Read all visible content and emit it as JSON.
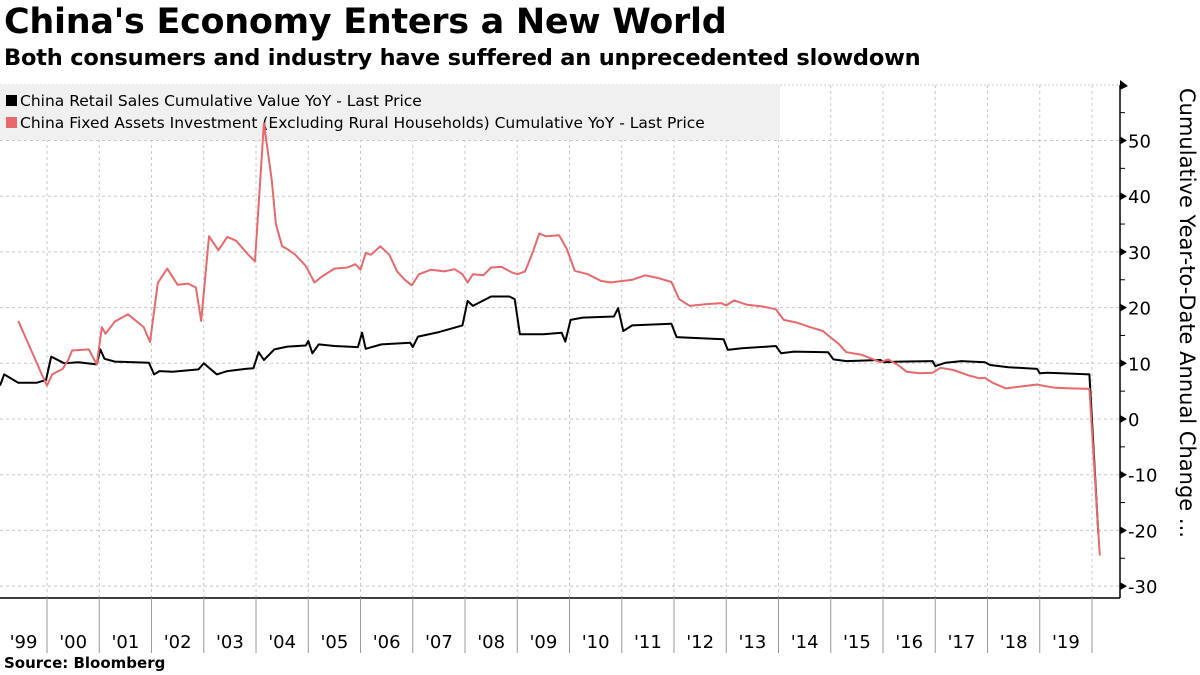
{
  "header": {
    "title": "China's Economy Enters a New World",
    "subtitle": "Both consumers and industry have suffered an unprecedented slowdown"
  },
  "footer": {
    "source": "Source: Bloomberg"
  },
  "chart_data": {
    "type": "line",
    "title": "China's Economy Enters a New World",
    "subtitle": "Both consumers and industry have suffered an unprecedented slowdown",
    "xlabel": "",
    "ylabel": "Cumulative Year-to-Date Annual Change ...",
    "xlim": [
      1999.1,
      2020.35
    ],
    "ylim": [
      -32,
      60
    ],
    "y_ticks": [
      50,
      40,
      30,
      20,
      10,
      0,
      -10,
      -20,
      -30
    ],
    "y_tick_labels": [
      "50",
      "40",
      "30",
      "20",
      "10",
      "0",
      "-10",
      "-20",
      "-30"
    ],
    "x_ticks": [
      1999,
      2000,
      2001,
      2002,
      2003,
      2004,
      2005,
      2006,
      2007,
      2008,
      2009,
      2010,
      2011,
      2012,
      2013,
      2014,
      2015,
      2016,
      2017,
      2018,
      2019
    ],
    "x_tick_labels": [
      "'99",
      "'00",
      "'01",
      "'02",
      "'03",
      "'04",
      "'05",
      "'06",
      "'07",
      "'08",
      "'09",
      "'10",
      "'11",
      "'12",
      "'13",
      "'14",
      "'15",
      "'16",
      "'17",
      "'18",
      "'19"
    ],
    "y_axis_side": "right",
    "grid": true,
    "legend_position": "top-left",
    "colors": {
      "retail": "#000000",
      "fai": "#e8696b",
      "legend_bg": "#f0f0f0",
      "grid": "#c8c8c8"
    },
    "series": [
      {
        "name": "China Retail Sales Cumulative Value YoY - Last Price",
        "color": "#000000",
        "points": [
          [
            1999.1,
            6.0
          ],
          [
            1999.18,
            8.0
          ],
          [
            1999.45,
            6.5
          ],
          [
            1999.8,
            6.5
          ],
          [
            1999.98,
            7.0
          ],
          [
            2000.08,
            11.2
          ],
          [
            2000.33,
            10.0
          ],
          [
            2000.6,
            10.2
          ],
          [
            2000.95,
            9.8
          ],
          [
            2001.02,
            12.5
          ],
          [
            2001.1,
            10.8
          ],
          [
            2001.3,
            10.3
          ],
          [
            2001.95,
            10.1
          ],
          [
            2002.05,
            8.0
          ],
          [
            2002.15,
            8.6
          ],
          [
            2002.4,
            8.5
          ],
          [
            2002.9,
            8.9
          ],
          [
            2003.0,
            10.0
          ],
          [
            2003.1,
            9.2
          ],
          [
            2003.25,
            8.0
          ],
          [
            2003.45,
            8.6
          ],
          [
            2003.8,
            9.0
          ],
          [
            2003.95,
            9.1
          ],
          [
            2004.05,
            12.0
          ],
          [
            2004.15,
            10.6
          ],
          [
            2004.35,
            12.5
          ],
          [
            2004.6,
            13.0
          ],
          [
            2004.95,
            13.2
          ],
          [
            2005.0,
            14.0
          ],
          [
            2005.08,
            11.8
          ],
          [
            2005.2,
            13.4
          ],
          [
            2005.5,
            13.1
          ],
          [
            2005.95,
            12.9
          ],
          [
            2006.03,
            15.5
          ],
          [
            2006.1,
            12.6
          ],
          [
            2006.4,
            13.4
          ],
          [
            2006.95,
            13.7
          ],
          [
            2007.0,
            12.9
          ],
          [
            2007.1,
            14.8
          ],
          [
            2007.5,
            15.6
          ],
          [
            2007.95,
            16.8
          ],
          [
            2008.05,
            21.2
          ],
          [
            2008.15,
            20.3
          ],
          [
            2008.5,
            22.0
          ],
          [
            2008.85,
            22.0
          ],
          [
            2008.95,
            21.5
          ],
          [
            2009.05,
            15.2
          ],
          [
            2009.5,
            15.2
          ],
          [
            2009.85,
            15.5
          ],
          [
            2009.92,
            13.9
          ],
          [
            2010.02,
            17.8
          ],
          [
            2010.25,
            18.2
          ],
          [
            2010.85,
            18.4
          ],
          [
            2010.93,
            19.9
          ],
          [
            2011.03,
            15.8
          ],
          [
            2011.2,
            16.8
          ],
          [
            2011.95,
            17.1
          ],
          [
            2012.05,
            14.7
          ],
          [
            2012.3,
            14.6
          ],
          [
            2012.95,
            14.3
          ],
          [
            2013.03,
            12.4
          ],
          [
            2013.3,
            12.7
          ],
          [
            2013.95,
            13.1
          ],
          [
            2014.05,
            11.8
          ],
          [
            2014.3,
            12.1
          ],
          [
            2014.95,
            12.0
          ],
          [
            2015.05,
            10.7
          ],
          [
            2015.3,
            10.4
          ],
          [
            2015.95,
            10.6
          ],
          [
            2016.03,
            10.2
          ],
          [
            2016.3,
            10.3
          ],
          [
            2016.95,
            10.4
          ],
          [
            2017.0,
            9.5
          ],
          [
            2017.2,
            10.1
          ],
          [
            2017.5,
            10.4
          ],
          [
            2017.95,
            10.2
          ],
          [
            2018.05,
            9.7
          ],
          [
            2018.4,
            9.3
          ],
          [
            2018.95,
            9.0
          ],
          [
            2019.0,
            8.2
          ],
          [
            2019.15,
            8.3
          ],
          [
            2019.4,
            8.2
          ],
          [
            2019.95,
            8.0
          ],
          [
            2020.12,
            -20.5
          ]
        ]
      },
      {
        "name": "China Fixed Assets Investment (Excluding Rural Households) Cumulative YoY - Last Price",
        "color": "#e8696b",
        "points": [
          [
            1999.45,
            17.6
          ],
          [
            1999.9,
            8.0
          ],
          [
            2000.0,
            6.0
          ],
          [
            2000.1,
            8.0
          ],
          [
            2000.3,
            9.0
          ],
          [
            2000.4,
            10.5
          ],
          [
            2000.48,
            12.3
          ],
          [
            2000.8,
            12.5
          ],
          [
            2000.95,
            9.8
          ],
          [
            2001.05,
            16.5
          ],
          [
            2001.12,
            15.3
          ],
          [
            2001.3,
            17.5
          ],
          [
            2001.55,
            18.8
          ],
          [
            2001.85,
            16.5
          ],
          [
            2001.97,
            13.8
          ],
          [
            2002.12,
            24.4
          ],
          [
            2002.3,
            27.0
          ],
          [
            2002.5,
            24.1
          ],
          [
            2002.7,
            24.3
          ],
          [
            2002.85,
            23.6
          ],
          [
            2002.95,
            17.6
          ],
          [
            2003.1,
            32.8
          ],
          [
            2003.28,
            30.3
          ],
          [
            2003.45,
            32.7
          ],
          [
            2003.62,
            32.0
          ],
          [
            2003.85,
            29.5
          ],
          [
            2003.98,
            28.3
          ],
          [
            2004.15,
            53.1
          ],
          [
            2004.3,
            43.0
          ],
          [
            2004.38,
            35.0
          ],
          [
            2004.5,
            31.0
          ],
          [
            2004.6,
            30.5
          ],
          [
            2004.75,
            29.5
          ],
          [
            2004.95,
            27.5
          ],
          [
            2005.12,
            24.5
          ],
          [
            2005.25,
            25.5
          ],
          [
            2005.5,
            27.0
          ],
          [
            2005.75,
            27.2
          ],
          [
            2005.9,
            27.8
          ],
          [
            2006.0,
            26.8
          ],
          [
            2006.1,
            29.8
          ],
          [
            2006.2,
            29.5
          ],
          [
            2006.38,
            31.0
          ],
          [
            2006.55,
            29.5
          ],
          [
            2006.7,
            26.5
          ],
          [
            2006.85,
            25.0
          ],
          [
            2006.98,
            24.0
          ],
          [
            2007.12,
            26.0
          ],
          [
            2007.35,
            26.8
          ],
          [
            2007.6,
            26.5
          ],
          [
            2007.8,
            26.9
          ],
          [
            2007.95,
            26.0
          ],
          [
            2008.05,
            24.5
          ],
          [
            2008.15,
            26.0
          ],
          [
            2008.35,
            25.8
          ],
          [
            2008.5,
            27.2
          ],
          [
            2008.7,
            27.3
          ],
          [
            2008.9,
            26.3
          ],
          [
            2009.0,
            26.0
          ],
          [
            2009.15,
            26.5
          ],
          [
            2009.3,
            30.0
          ],
          [
            2009.42,
            33.3
          ],
          [
            2009.55,
            32.8
          ],
          [
            2009.8,
            33.0
          ],
          [
            2009.95,
            30.5
          ],
          [
            2010.1,
            26.6
          ],
          [
            2010.35,
            26.0
          ],
          [
            2010.6,
            24.8
          ],
          [
            2010.8,
            24.5
          ],
          [
            2010.95,
            24.7
          ],
          [
            2011.2,
            25.0
          ],
          [
            2011.45,
            25.8
          ],
          [
            2011.7,
            25.3
          ],
          [
            2011.95,
            24.6
          ],
          [
            2012.1,
            21.5
          ],
          [
            2012.3,
            20.3
          ],
          [
            2012.6,
            20.6
          ],
          [
            2012.9,
            20.8
          ],
          [
            2013.0,
            20.4
          ],
          [
            2013.15,
            21.3
          ],
          [
            2013.4,
            20.5
          ],
          [
            2013.7,
            20.2
          ],
          [
            2013.95,
            19.7
          ],
          [
            2014.1,
            17.8
          ],
          [
            2014.35,
            17.3
          ],
          [
            2014.6,
            16.5
          ],
          [
            2014.85,
            15.8
          ],
          [
            2014.95,
            15.0
          ],
          [
            2015.15,
            13.5
          ],
          [
            2015.3,
            12.0
          ],
          [
            2015.6,
            11.5
          ],
          [
            2015.95,
            10.2
          ],
          [
            2016.1,
            10.7
          ],
          [
            2016.3,
            9.6
          ],
          [
            2016.45,
            8.5
          ],
          [
            2016.7,
            8.2
          ],
          [
            2016.95,
            8.3
          ],
          [
            2017.1,
            9.2
          ],
          [
            2017.35,
            8.8
          ],
          [
            2017.65,
            7.8
          ],
          [
            2017.85,
            7.3
          ],
          [
            2017.95,
            7.4
          ],
          [
            2018.1,
            6.5
          ],
          [
            2018.35,
            5.5
          ],
          [
            2018.6,
            5.8
          ],
          [
            2018.95,
            6.2
          ],
          [
            2019.1,
            5.9
          ],
          [
            2019.3,
            5.6
          ],
          [
            2019.6,
            5.5
          ],
          [
            2019.95,
            5.4
          ],
          [
            2020.15,
            -24.5
          ]
        ]
      }
    ]
  }
}
